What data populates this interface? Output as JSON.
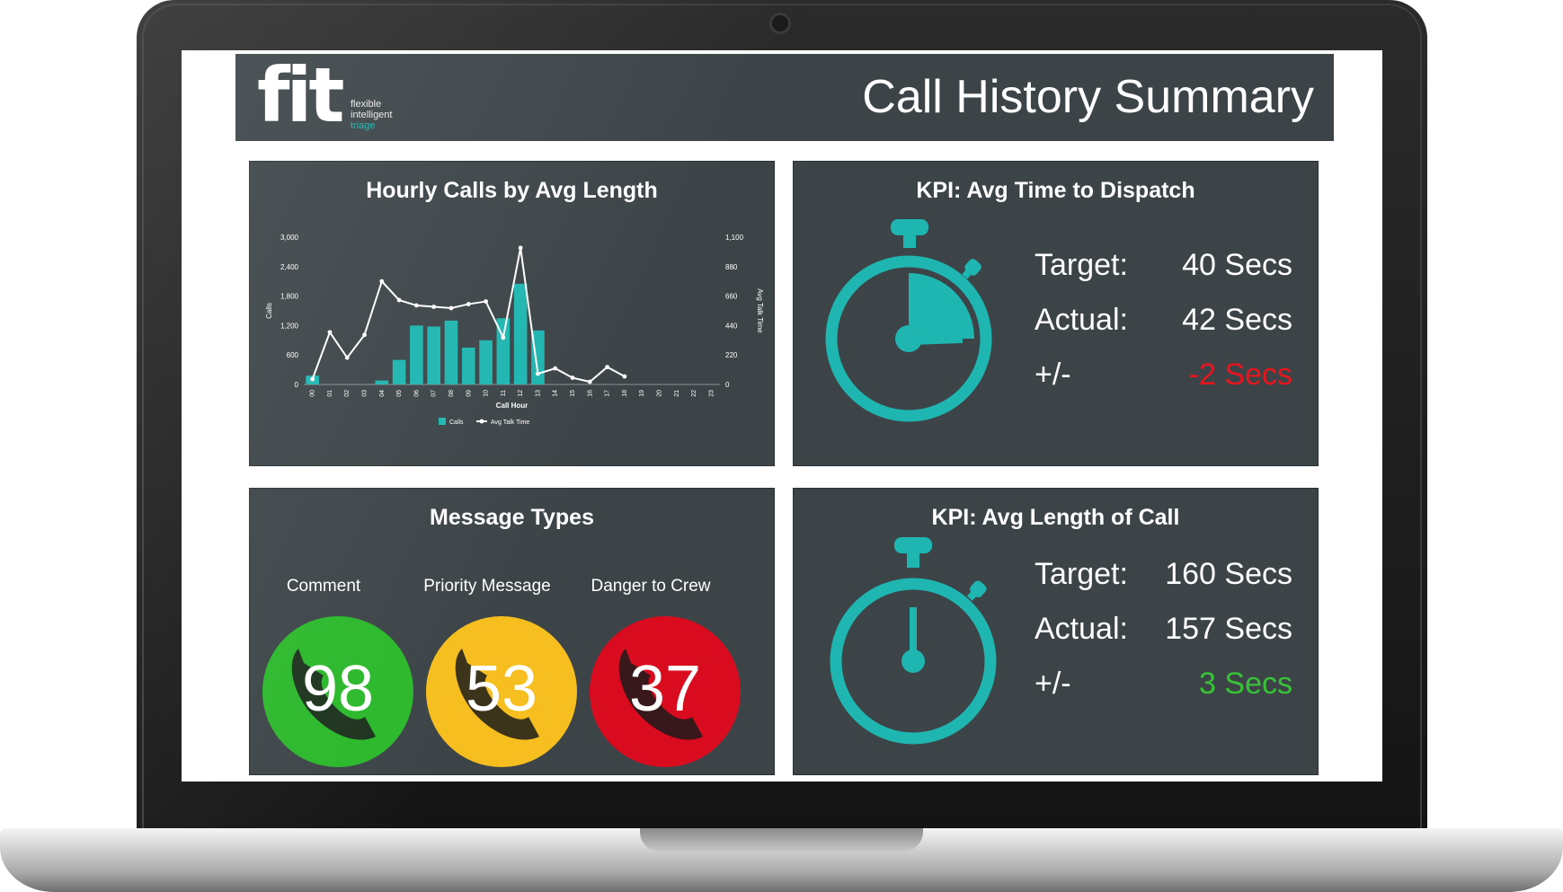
{
  "header": {
    "logo_text": "fit",
    "tagline": [
      "flexible",
      "intelligent",
      "triage"
    ],
    "title": "Call History Summary"
  },
  "chart_panel": {
    "title": "Hourly Calls by Avg Length"
  },
  "chart_data": {
    "type": "bar",
    "xlabel": "Call Hour",
    "ylabel": "Calls",
    "y2label": "Avg Talk Time",
    "categories": [
      "00",
      "01",
      "02",
      "03",
      "04",
      "05",
      "06",
      "07",
      "08",
      "09",
      "10",
      "11",
      "12",
      "13",
      "14",
      "15",
      "16",
      "17",
      "18",
      "19",
      "20",
      "21",
      "22",
      "23"
    ],
    "ylim": [
      0,
      3000
    ],
    "y2lim": [
      0,
      1100
    ],
    "y_ticks": [
      "0",
      "600",
      "1,200",
      "1,800",
      "2,400",
      "3,000"
    ],
    "y2_ticks": [
      "0",
      "220",
      "440",
      "660",
      "880",
      "1,100"
    ],
    "series": [
      {
        "name": "Calls",
        "type": "bar",
        "color": "#1fb5b0",
        "values": [
          180,
          0,
          0,
          0,
          80,
          500,
          1200,
          1180,
          1300,
          750,
          900,
          1350,
          2050,
          1100,
          0,
          0,
          0,
          0,
          0,
          0,
          0,
          0,
          0,
          0
        ]
      },
      {
        "name": "Avg Talk Time",
        "type": "line",
        "color": "#ffffff",
        "axis": "right",
        "values": [
          40,
          390,
          200,
          370,
          770,
          630,
          590,
          580,
          570,
          600,
          620,
          350,
          1020,
          80,
          120,
          50,
          20,
          130,
          60,
          null,
          null,
          null,
          null,
          null
        ]
      }
    ],
    "legend": "bottom"
  },
  "dispatch_panel": {
    "title": "KPI: Avg Time to Dispatch",
    "target_label": "Target:",
    "target_value": "40 Secs",
    "actual_label": "Actual:",
    "actual_value": "42 Secs",
    "diff_label": "+/-",
    "diff_value": "-2 Secs",
    "diff_color": "#e8141e",
    "icon": "stopwatch-icon"
  },
  "length_panel": {
    "title": "KPI: Avg Length of Call",
    "target_label": "Target:",
    "target_value": "160 Secs",
    "actual_label": "Actual:",
    "actual_value": "157 Secs",
    "diff_label": "+/-",
    "diff_value": "3 Secs",
    "diff_color": "#38c238",
    "icon": "stopwatch-icon"
  },
  "message_panel": {
    "title": "Message Types",
    "types": [
      {
        "label": "Comment",
        "count": "98",
        "color": "#2bb82b"
      },
      {
        "label": "Priority Message",
        "count": "53",
        "color": "#f6be1e"
      },
      {
        "label": "Danger to Crew",
        "count": "37",
        "color": "#d90b1f"
      }
    ]
  },
  "colors": {
    "panel_bg": "#3c4448",
    "accent": "#1fb5b0"
  }
}
